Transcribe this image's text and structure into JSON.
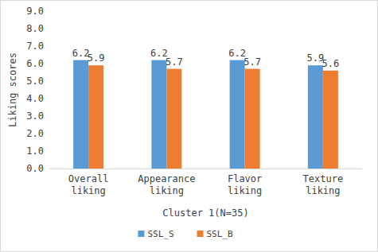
{
  "chart_data": {
    "type": "bar",
    "y_label": "Liking scores",
    "x_label": "Cluster 1(N=35)",
    "categories": [
      "Overall liking",
      "Appearance liking",
      "Flavor liking",
      "Texture liking"
    ],
    "series": [
      {
        "name": "SSL_S",
        "color": "#5b9bd5",
        "values": [
          6.2,
          6.2,
          6.2,
          5.9
        ]
      },
      {
        "name": "SSL_B",
        "color": "#ed7d31",
        "values": [
          5.9,
          5.7,
          5.7,
          5.6
        ]
      }
    ],
    "ylim": [
      0,
      9
    ],
    "yticks": [
      {
        "value": 0,
        "label": "0.0"
      },
      {
        "value": 1,
        "label": "1.0"
      },
      {
        "value": 2,
        "label": "2.0"
      },
      {
        "value": 3,
        "label": "3.0"
      },
      {
        "value": 4,
        "label": "4.0"
      },
      {
        "value": 5,
        "label": "5.0"
      },
      {
        "value": 6,
        "label": "6.0"
      },
      {
        "value": 7,
        "label": "7.0"
      },
      {
        "value": 8,
        "label": "8.0"
      },
      {
        "value": 9,
        "label": "9.0"
      }
    ],
    "grid": false,
    "legend": "bottom",
    "data_labels": true
  }
}
